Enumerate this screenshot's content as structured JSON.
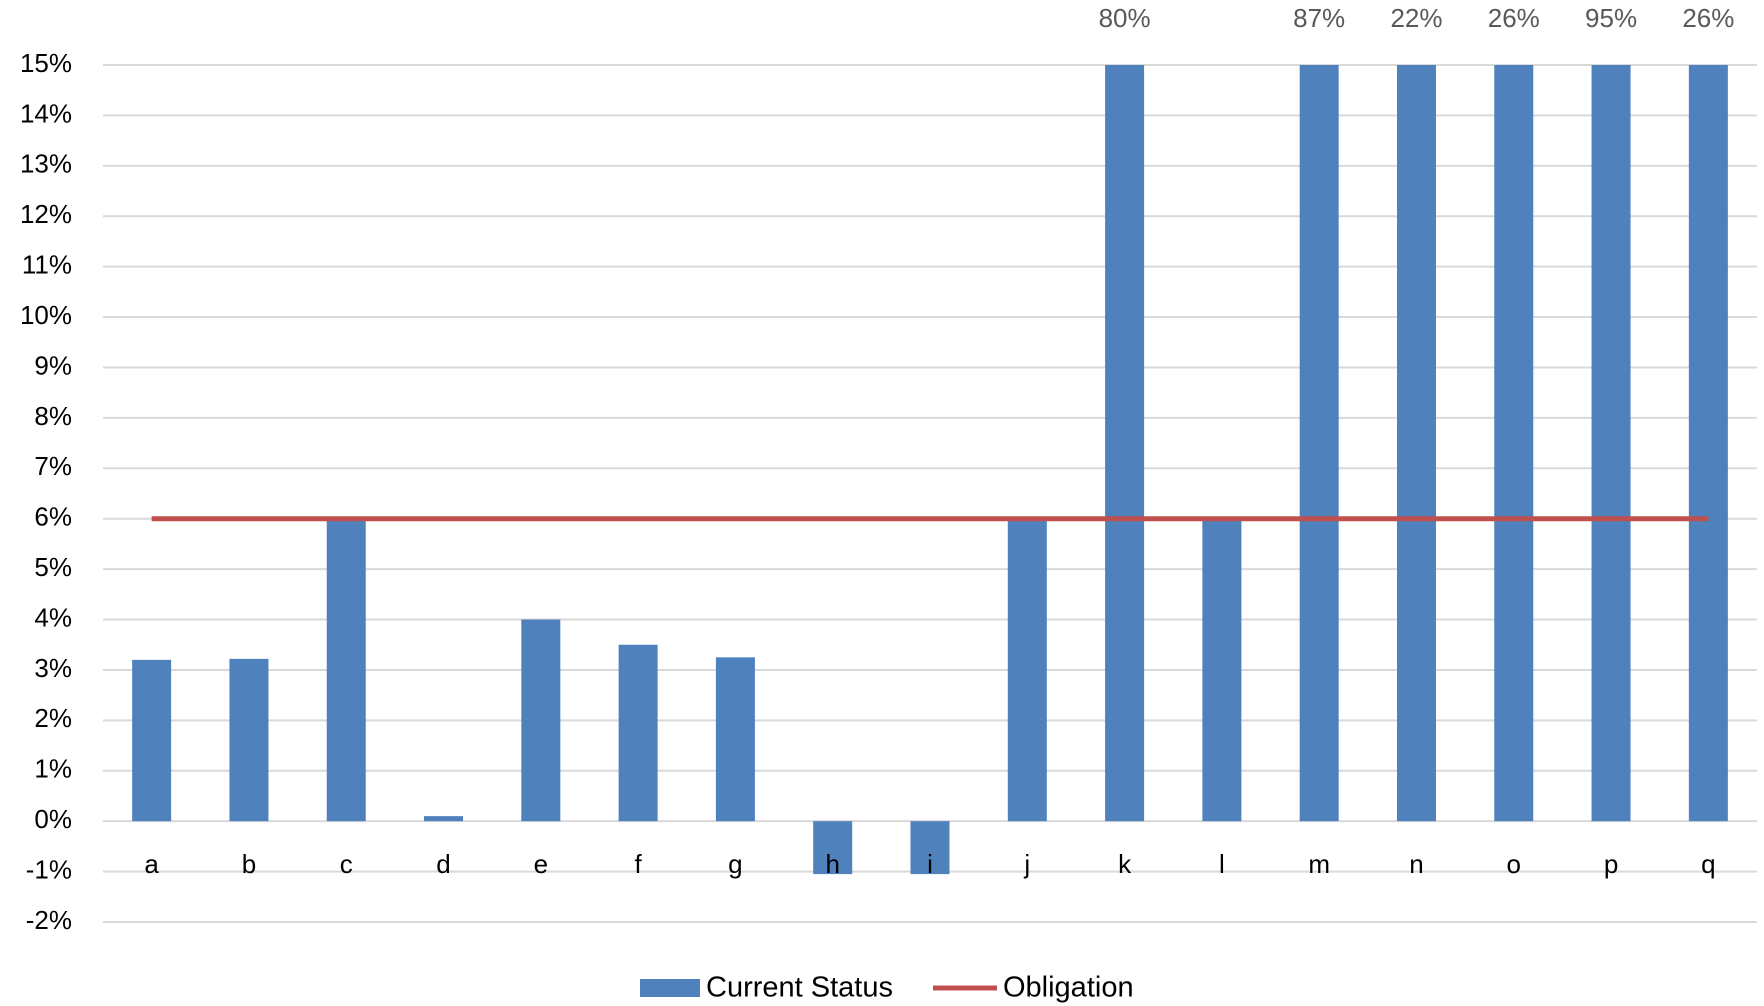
{
  "chart_data": {
    "type": "bar",
    "categories": [
      "a",
      "b",
      "c",
      "d",
      "e",
      "f",
      "g",
      "h",
      "i",
      "j",
      "k",
      "l",
      "m",
      "n",
      "o",
      "p",
      "q"
    ],
    "series": [
      {
        "name": "Current Status",
        "type": "bar",
        "color": "#4f81bd",
        "values": [
          3.2,
          3.22,
          6,
          0.1,
          4,
          3.5,
          3.25,
          -1.05,
          -1.05,
          6,
          80,
          6,
          87,
          22,
          26,
          95,
          26
        ],
        "value_labels": [
          null,
          null,
          null,
          null,
          null,
          null,
          null,
          null,
          null,
          null,
          "80%",
          null,
          "87%",
          "22%",
          "26%",
          "95%",
          "26%"
        ]
      },
      {
        "name": "Obligation",
        "type": "line",
        "color": "#c0504d",
        "values": [
          6,
          6,
          6,
          6,
          6,
          6,
          6,
          6,
          6,
          6,
          6,
          6,
          6,
          6,
          6,
          6,
          6
        ]
      }
    ],
    "ylim": [
      -2,
      15
    ],
    "yticks": [
      {
        "value": -2,
        "label": "-2%"
      },
      {
        "value": -1,
        "label": "-1%"
      },
      {
        "value": 0,
        "label": "0%"
      },
      {
        "value": 1,
        "label": "1%"
      },
      {
        "value": 2,
        "label": "2%"
      },
      {
        "value": 3,
        "label": "3%"
      },
      {
        "value": 4,
        "label": "4%"
      },
      {
        "value": 5,
        "label": "5%"
      },
      {
        "value": 6,
        "label": "6%"
      },
      {
        "value": 7,
        "label": "7%"
      },
      {
        "value": 8,
        "label": "8%"
      },
      {
        "value": 9,
        "label": "9%"
      },
      {
        "value": 10,
        "label": "10%"
      },
      {
        "value": 11,
        "label": "11%"
      },
      {
        "value": 12,
        "label": "12%"
      },
      {
        "value": 13,
        "label": "13%"
      },
      {
        "value": 14,
        "label": "14%"
      },
      {
        "value": 15,
        "label": "15%"
      }
    ],
    "grid": true,
    "legend": "bottom"
  }
}
